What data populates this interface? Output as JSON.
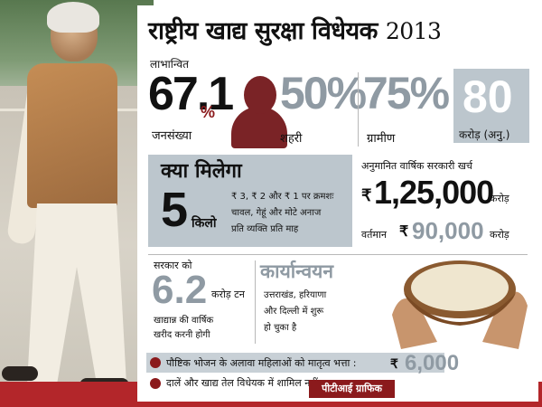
{
  "title": {
    "text": "राष्ट्रीय खाद्य सुरक्षा विधेयक",
    "year": "2013"
  },
  "beneficiaries": {
    "label_top": "लाभान्वित",
    "value": "67.1",
    "unit": "%",
    "label_bottom": "जनसंख्या"
  },
  "urban": {
    "value": "50%",
    "label": "शहरी"
  },
  "rural": {
    "value": "75%",
    "label": "ग्रामीण"
  },
  "crore": {
    "value": "80",
    "label": "करोड़ (अनु.)"
  },
  "kya_milega": {
    "title": "क्या मिलेगा",
    "qty": "5",
    "qty_unit": "किलो",
    "line1": "₹ 3, ₹ 2 और ₹ 1 पर क्रमशः",
    "line2": "चावल, गेहूं और मोटे अनाज",
    "line3": "प्रति व्यक्ति प्रति माह"
  },
  "expense": {
    "label": "अनुमानित वार्षिक सरकारी खर्च",
    "rupee": "₹",
    "value": "1,25,000",
    "unit": "करोड़",
    "current_label": "वर्तमान",
    "current_rupee": "₹",
    "current_value": "90,000",
    "current_unit": "करोड़"
  },
  "procurement": {
    "label_top": "सरकार को",
    "value": "6.2",
    "unit": "करोड़ टन",
    "line1": "खाद्यान्न की वार्षिक",
    "line2": "खरीद करनी होगी"
  },
  "implementation": {
    "title": "कार्यान्वयन",
    "line1": "उत्तराखंड, हरियाणा",
    "line2": "और दिल्ली में शुरू",
    "line3": "हो चुका है"
  },
  "bullets": [
    {
      "text": "पौष्टिक भोजन के अलावा महिलाओं को मातृत्व भत्ता :",
      "rupee": "₹",
      "value": "6,000"
    },
    {
      "text": "दालें और खाद्य तेल विधेयक में शामिल नहीं"
    }
  ],
  "credit": "पीटीआई ग्राफिक",
  "colors": {
    "maroon": "#8b1a1c",
    "grey_box": "#bcc6cd",
    "grey_number": "#8f9aa3",
    "carpet": "#b3262a"
  }
}
